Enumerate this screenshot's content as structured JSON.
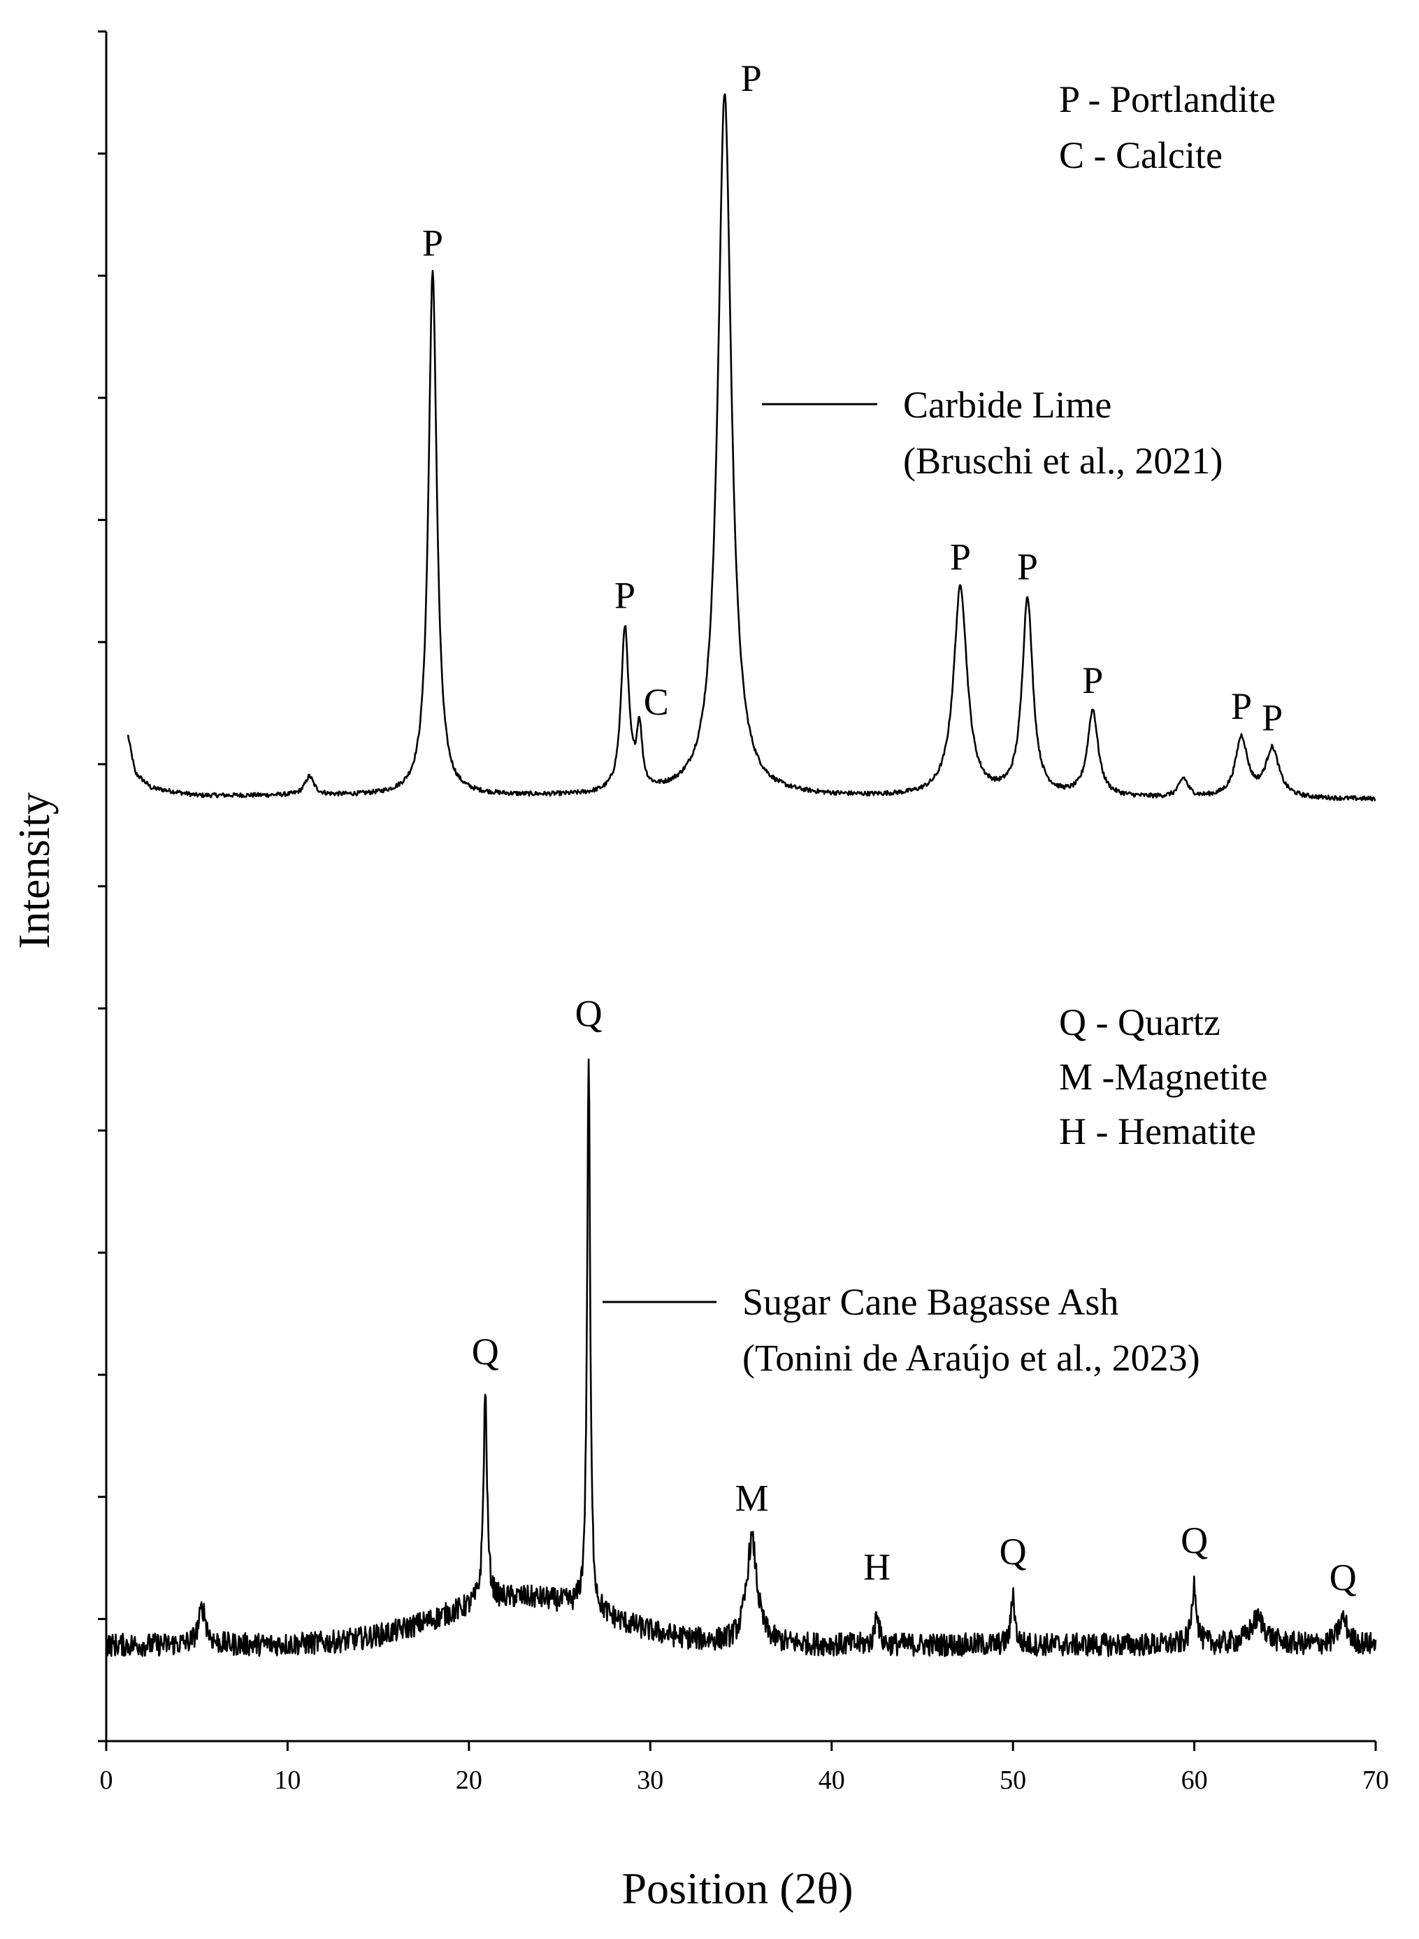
{
  "chart_data": {
    "type": "line",
    "xlabel": "Position (2θ)",
    "ylabel": "Intensity",
    "xlim": [
      0,
      70
    ],
    "x_ticks": [
      "0",
      "10",
      "20",
      "30",
      "40",
      "50",
      "60",
      "70"
    ],
    "y_tick_count": 14,
    "grid": false,
    "series": [
      {
        "name": "Carbide Lime",
        "source": "(Bruschi et al., 2021)",
        "baseline": 1.0,
        "background_points": [
          [
            1.2,
            1.8
          ],
          [
            1.6,
            1.3
          ],
          [
            2.5,
            1.1
          ],
          [
            5,
            1.0
          ],
          [
            70,
            0.95
          ]
        ],
        "peaks": [
          {
            "x": 11.2,
            "height": 0.25,
            "width": 0.3
          },
          {
            "x": 18.0,
            "height": 7.0,
            "width": 0.28
          },
          {
            "x": 28.6,
            "height": 2.2,
            "width": 0.25
          },
          {
            "x": 29.4,
            "height": 0.8,
            "width": 0.18
          },
          {
            "x": 34.1,
            "height": 9.4,
            "width": 0.45
          },
          {
            "x": 47.1,
            "height": 2.8,
            "width": 0.45
          },
          {
            "x": 50.8,
            "height": 2.65,
            "width": 0.35
          },
          {
            "x": 54.4,
            "height": 1.15,
            "width": 0.35
          },
          {
            "x": 59.4,
            "height": 0.25,
            "width": 0.3
          },
          {
            "x": 62.6,
            "height": 0.8,
            "width": 0.4
          },
          {
            "x": 64.3,
            "height": 0.65,
            "width": 0.45
          }
        ]
      },
      {
        "name": "Sugar Cane Bagasse Ash",
        "source": "(Tonini de Araújo et al., 2023)",
        "baseline": 0.45,
        "hump": {
          "center": 23,
          "height": 0.45,
          "width": 4.5
        },
        "peaks": [
          {
            "x": 5.3,
            "height": 0.35,
            "width": 0.25
          },
          {
            "x": 20.9,
            "height": 2.0,
            "width": 0.12
          },
          {
            "x": 26.6,
            "height": 5.3,
            "width": 0.1
          },
          {
            "x": 35.6,
            "height": 1.0,
            "width": 0.35
          },
          {
            "x": 42.5,
            "height": 0.35,
            "width": 0.12
          },
          {
            "x": 50.0,
            "height": 0.5,
            "width": 0.12
          },
          {
            "x": 60.0,
            "height": 0.6,
            "width": 0.15
          },
          {
            "x": 63.5,
            "height": 0.25,
            "width": 0.5
          },
          {
            "x": 68.2,
            "height": 0.25,
            "width": 0.3
          }
        ]
      }
    ],
    "peak_labels": [
      {
        "text": "P",
        "x": 18.0,
        "series": 0
      },
      {
        "text": "P",
        "x": 28.6,
        "series": 0
      },
      {
        "text": "C",
        "x": 29.4,
        "series": 0
      },
      {
        "text": "P",
        "x": 34.1,
        "series": 0
      },
      {
        "text": "P",
        "x": 47.1,
        "series": 0
      },
      {
        "text": "P",
        "x": 50.8,
        "series": 0
      },
      {
        "text": "P",
        "x": 54.4,
        "series": 0
      },
      {
        "text": "P",
        "x": 62.6,
        "series": 0
      },
      {
        "text": "P",
        "x": 64.3,
        "series": 0
      },
      {
        "text": "Q",
        "x": 20.9,
        "series": 1
      },
      {
        "text": "Q",
        "x": 26.6,
        "series": 1
      },
      {
        "text": "M",
        "x": 35.6,
        "series": 1
      },
      {
        "text": "H",
        "x": 42.5,
        "series": 1
      },
      {
        "text": "Q",
        "x": 50.0,
        "series": 1
      },
      {
        "text": "Q",
        "x": 60.0,
        "series": 1
      },
      {
        "text": "Q",
        "x": 68.2,
        "series": 1
      }
    ],
    "legends": [
      {
        "lines": [
          "P - Portlandite",
          "C - Calcite"
        ]
      },
      {
        "lines": [
          "Q - Quartz",
          "M -Magnetite",
          "H - Hematite"
        ]
      }
    ]
  }
}
